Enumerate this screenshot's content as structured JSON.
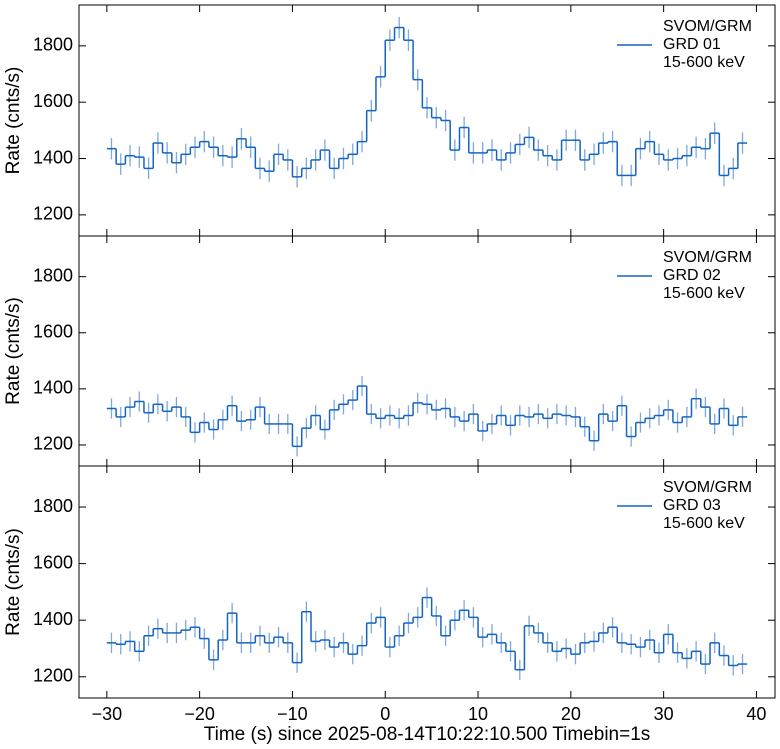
{
  "chart_data": [
    {
      "type": "step",
      "ylabel": "Rate (cnts/s)",
      "xlim": [
        -33,
        42
      ],
      "ylim": [
        1125,
        1945
      ],
      "xticks": [
        -30,
        -20,
        -10,
        0,
        10,
        20,
        30,
        40
      ],
      "yticks": [
        1200,
        1400,
        1600,
        1800
      ],
      "x": [
        -29.5,
        -28.5,
        -27.5,
        -26.5,
        -25.5,
        -24.5,
        -23.5,
        -22.5,
        -21.5,
        -20.5,
        -19.5,
        -18.5,
        -17.5,
        -16.5,
        -15.5,
        -14.5,
        -13.5,
        -12.5,
        -11.5,
        -10.5,
        -9.5,
        -8.5,
        -7.5,
        -6.5,
        -5.5,
        -4.5,
        -3.5,
        -2.5,
        -1.5,
        -0.5,
        0.5,
        1.5,
        2.5,
        3.5,
        4.5,
        5.5,
        6.5,
        7.5,
        8.5,
        9.5,
        10.5,
        11.5,
        12.5,
        13.5,
        14.5,
        15.5,
        16.5,
        17.5,
        18.5,
        19.5,
        20.5,
        21.5,
        22.5,
        23.5,
        24.5,
        25.5,
        26.5,
        27.5,
        28.5,
        29.5,
        30.5,
        31.5,
        32.5,
        33.5,
        34.5,
        35.5,
        36.5,
        37.5,
        38.5
      ],
      "legend_title": "SVOM/GRM",
      "legend_subtitle": "15-600 keV",
      "series": [
        {
          "name": "GRD 01",
          "color": "#1565c0",
          "error_color": "#7fa9dd",
          "error": 38,
          "values": [
            1435,
            1380,
            1410,
            1405,
            1365,
            1455,
            1420,
            1385,
            1415,
            1440,
            1460,
            1440,
            1410,
            1405,
            1470,
            1440,
            1365,
            1355,
            1415,
            1395,
            1335,
            1365,
            1395,
            1430,
            1365,
            1400,
            1415,
            1460,
            1570,
            1690,
            1820,
            1865,
            1820,
            1680,
            1580,
            1545,
            1535,
            1430,
            1510,
            1420,
            1420,
            1430,
            1395,
            1420,
            1450,
            1475,
            1430,
            1410,
            1395,
            1465,
            1465,
            1395,
            1415,
            1455,
            1460,
            1340,
            1340,
            1435,
            1460,
            1415,
            1395,
            1400,
            1410,
            1440,
            1435,
            1490,
            1340,
            1365,
            1455
          ]
        }
      ]
    },
    {
      "type": "step",
      "ylabel": "Rate (cnts/s)",
      "xlim": [
        -33,
        42
      ],
      "ylim": [
        1125,
        1945
      ],
      "xticks": [
        -30,
        -20,
        -10,
        0,
        10,
        20,
        30,
        40
      ],
      "yticks": [
        1200,
        1400,
        1600,
        1800
      ],
      "x": [
        -29.5,
        -28.5,
        -27.5,
        -26.5,
        -25.5,
        -24.5,
        -23.5,
        -22.5,
        -21.5,
        -20.5,
        -19.5,
        -18.5,
        -17.5,
        -16.5,
        -15.5,
        -14.5,
        -13.5,
        -12.5,
        -11.5,
        -10.5,
        -9.5,
        -8.5,
        -7.5,
        -6.5,
        -5.5,
        -4.5,
        -3.5,
        -2.5,
        -1.5,
        -0.5,
        0.5,
        1.5,
        2.5,
        3.5,
        4.5,
        5.5,
        6.5,
        7.5,
        8.5,
        9.5,
        10.5,
        11.5,
        12.5,
        13.5,
        14.5,
        15.5,
        16.5,
        17.5,
        18.5,
        19.5,
        20.5,
        21.5,
        22.5,
        23.5,
        24.5,
        25.5,
        26.5,
        27.5,
        28.5,
        29.5,
        30.5,
        31.5,
        32.5,
        33.5,
        34.5,
        35.5,
        36.5,
        37.5,
        38.5
      ],
      "legend_title": "SVOM/GRM",
      "legend_subtitle": "15-600 keV",
      "series": [
        {
          "name": "GRD 02",
          "color": "#1565c0",
          "error_color": "#7fa9dd",
          "error": 36,
          "values": [
            1330,
            1300,
            1335,
            1355,
            1315,
            1345,
            1320,
            1335,
            1300,
            1245,
            1280,
            1255,
            1290,
            1340,
            1285,
            1290,
            1335,
            1275,
            1275,
            1275,
            1195,
            1260,
            1305,
            1255,
            1325,
            1345,
            1360,
            1410,
            1310,
            1295,
            1305,
            1295,
            1305,
            1350,
            1345,
            1325,
            1330,
            1300,
            1285,
            1310,
            1250,
            1275,
            1305,
            1270,
            1305,
            1300,
            1310,
            1295,
            1310,
            1305,
            1300,
            1265,
            1215,
            1310,
            1285,
            1340,
            1230,
            1280,
            1295,
            1305,
            1325,
            1280,
            1300,
            1365,
            1335,
            1275,
            1330,
            1270,
            1300
          ]
        }
      ]
    },
    {
      "type": "step",
      "ylabel": "Rate (cnts/s)",
      "xlabel": "Time (s) since 2025-08-14T10:22:10.500 Timebin=1s",
      "xlim": [
        -33,
        42
      ],
      "ylim": [
        1125,
        1945
      ],
      "xticks": [
        {
          "value": -30,
          "label": "−30"
        },
        {
          "value": -20,
          "label": "−20"
        },
        {
          "value": -10,
          "label": "−10"
        },
        0,
        10,
        20,
        30,
        40
      ],
      "yticks": [
        1200,
        1400,
        1600,
        1800
      ],
      "x": [
        -29.5,
        -28.5,
        -27.5,
        -26.5,
        -25.5,
        -24.5,
        -23.5,
        -22.5,
        -21.5,
        -20.5,
        -19.5,
        -18.5,
        -17.5,
        -16.5,
        -15.5,
        -14.5,
        -13.5,
        -12.5,
        -11.5,
        -10.5,
        -9.5,
        -8.5,
        -7.5,
        -6.5,
        -5.5,
        -4.5,
        -3.5,
        -2.5,
        -1.5,
        -0.5,
        0.5,
        1.5,
        2.5,
        3.5,
        4.5,
        5.5,
        6.5,
        7.5,
        8.5,
        9.5,
        10.5,
        11.5,
        12.5,
        13.5,
        14.5,
        15.5,
        16.5,
        17.5,
        18.5,
        19.5,
        20.5,
        21.5,
        22.5,
        23.5,
        24.5,
        25.5,
        26.5,
        27.5,
        28.5,
        29.5,
        30.5,
        31.5,
        32.5,
        33.5,
        34.5,
        35.5,
        36.5,
        37.5,
        38.5
      ],
      "legend_title": "SVOM/GRM",
      "legend_subtitle": "15-600 keV",
      "series": [
        {
          "name": "GRD 03",
          "color": "#1565c0",
          "error_color": "#7fa9dd",
          "error": 36,
          "values": [
            1320,
            1315,
            1325,
            1290,
            1345,
            1370,
            1355,
            1355,
            1365,
            1375,
            1335,
            1260,
            1330,
            1425,
            1320,
            1320,
            1345,
            1320,
            1340,
            1320,
            1250,
            1430,
            1325,
            1330,
            1305,
            1320,
            1280,
            1310,
            1390,
            1410,
            1305,
            1345,
            1390,
            1410,
            1480,
            1415,
            1345,
            1400,
            1435,
            1410,
            1340,
            1350,
            1320,
            1290,
            1225,
            1380,
            1355,
            1320,
            1290,
            1300,
            1280,
            1320,
            1325,
            1355,
            1375,
            1320,
            1315,
            1305,
            1330,
            1285,
            1350,
            1285,
            1265,
            1290,
            1245,
            1320,
            1275,
            1240,
            1245
          ]
        }
      ]
    }
  ]
}
